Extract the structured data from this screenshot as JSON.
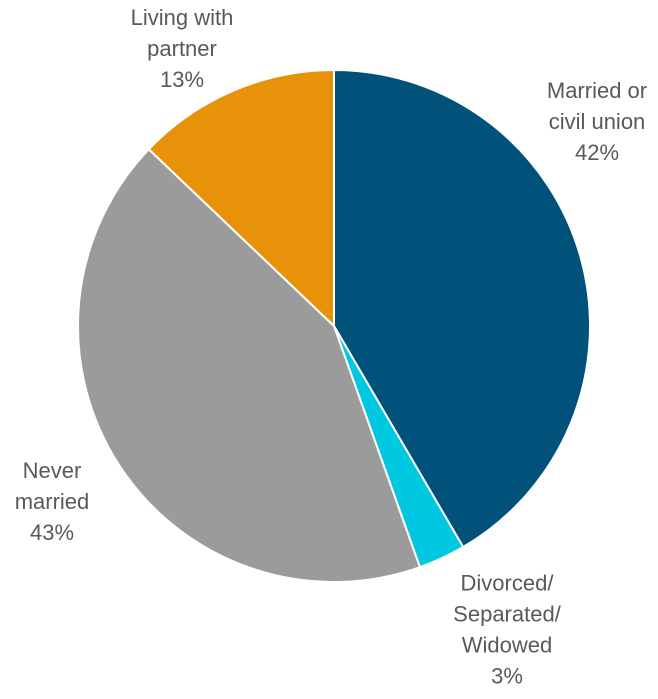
{
  "chart_data": {
    "type": "pie",
    "title": "",
    "slices": [
      {
        "label": "Married or civil union",
        "label_lines": [
          "Married or",
          "civil union"
        ],
        "value": 42,
        "value_label": "42%",
        "color": "#00527a"
      },
      {
        "label": "Divorced/ Separated/ Widowed",
        "label_lines": [
          "Divorced/",
          "Separated/",
          "Widowed"
        ],
        "value": 3,
        "value_label": "3%",
        "color": "#00c8e0"
      },
      {
        "label": "Never married",
        "label_lines": [
          "Never",
          "married"
        ],
        "value": 43,
        "value_label": "43%",
        "color": "#9b9b9b"
      },
      {
        "label": "Living with partner",
        "label_lines": [
          "Living with",
          "partner"
        ],
        "value": 13,
        "value_label": "13%",
        "color": "#e8920a"
      }
    ],
    "start_angle": "12 o'clock",
    "direction": "clockwise",
    "legend": "none"
  }
}
